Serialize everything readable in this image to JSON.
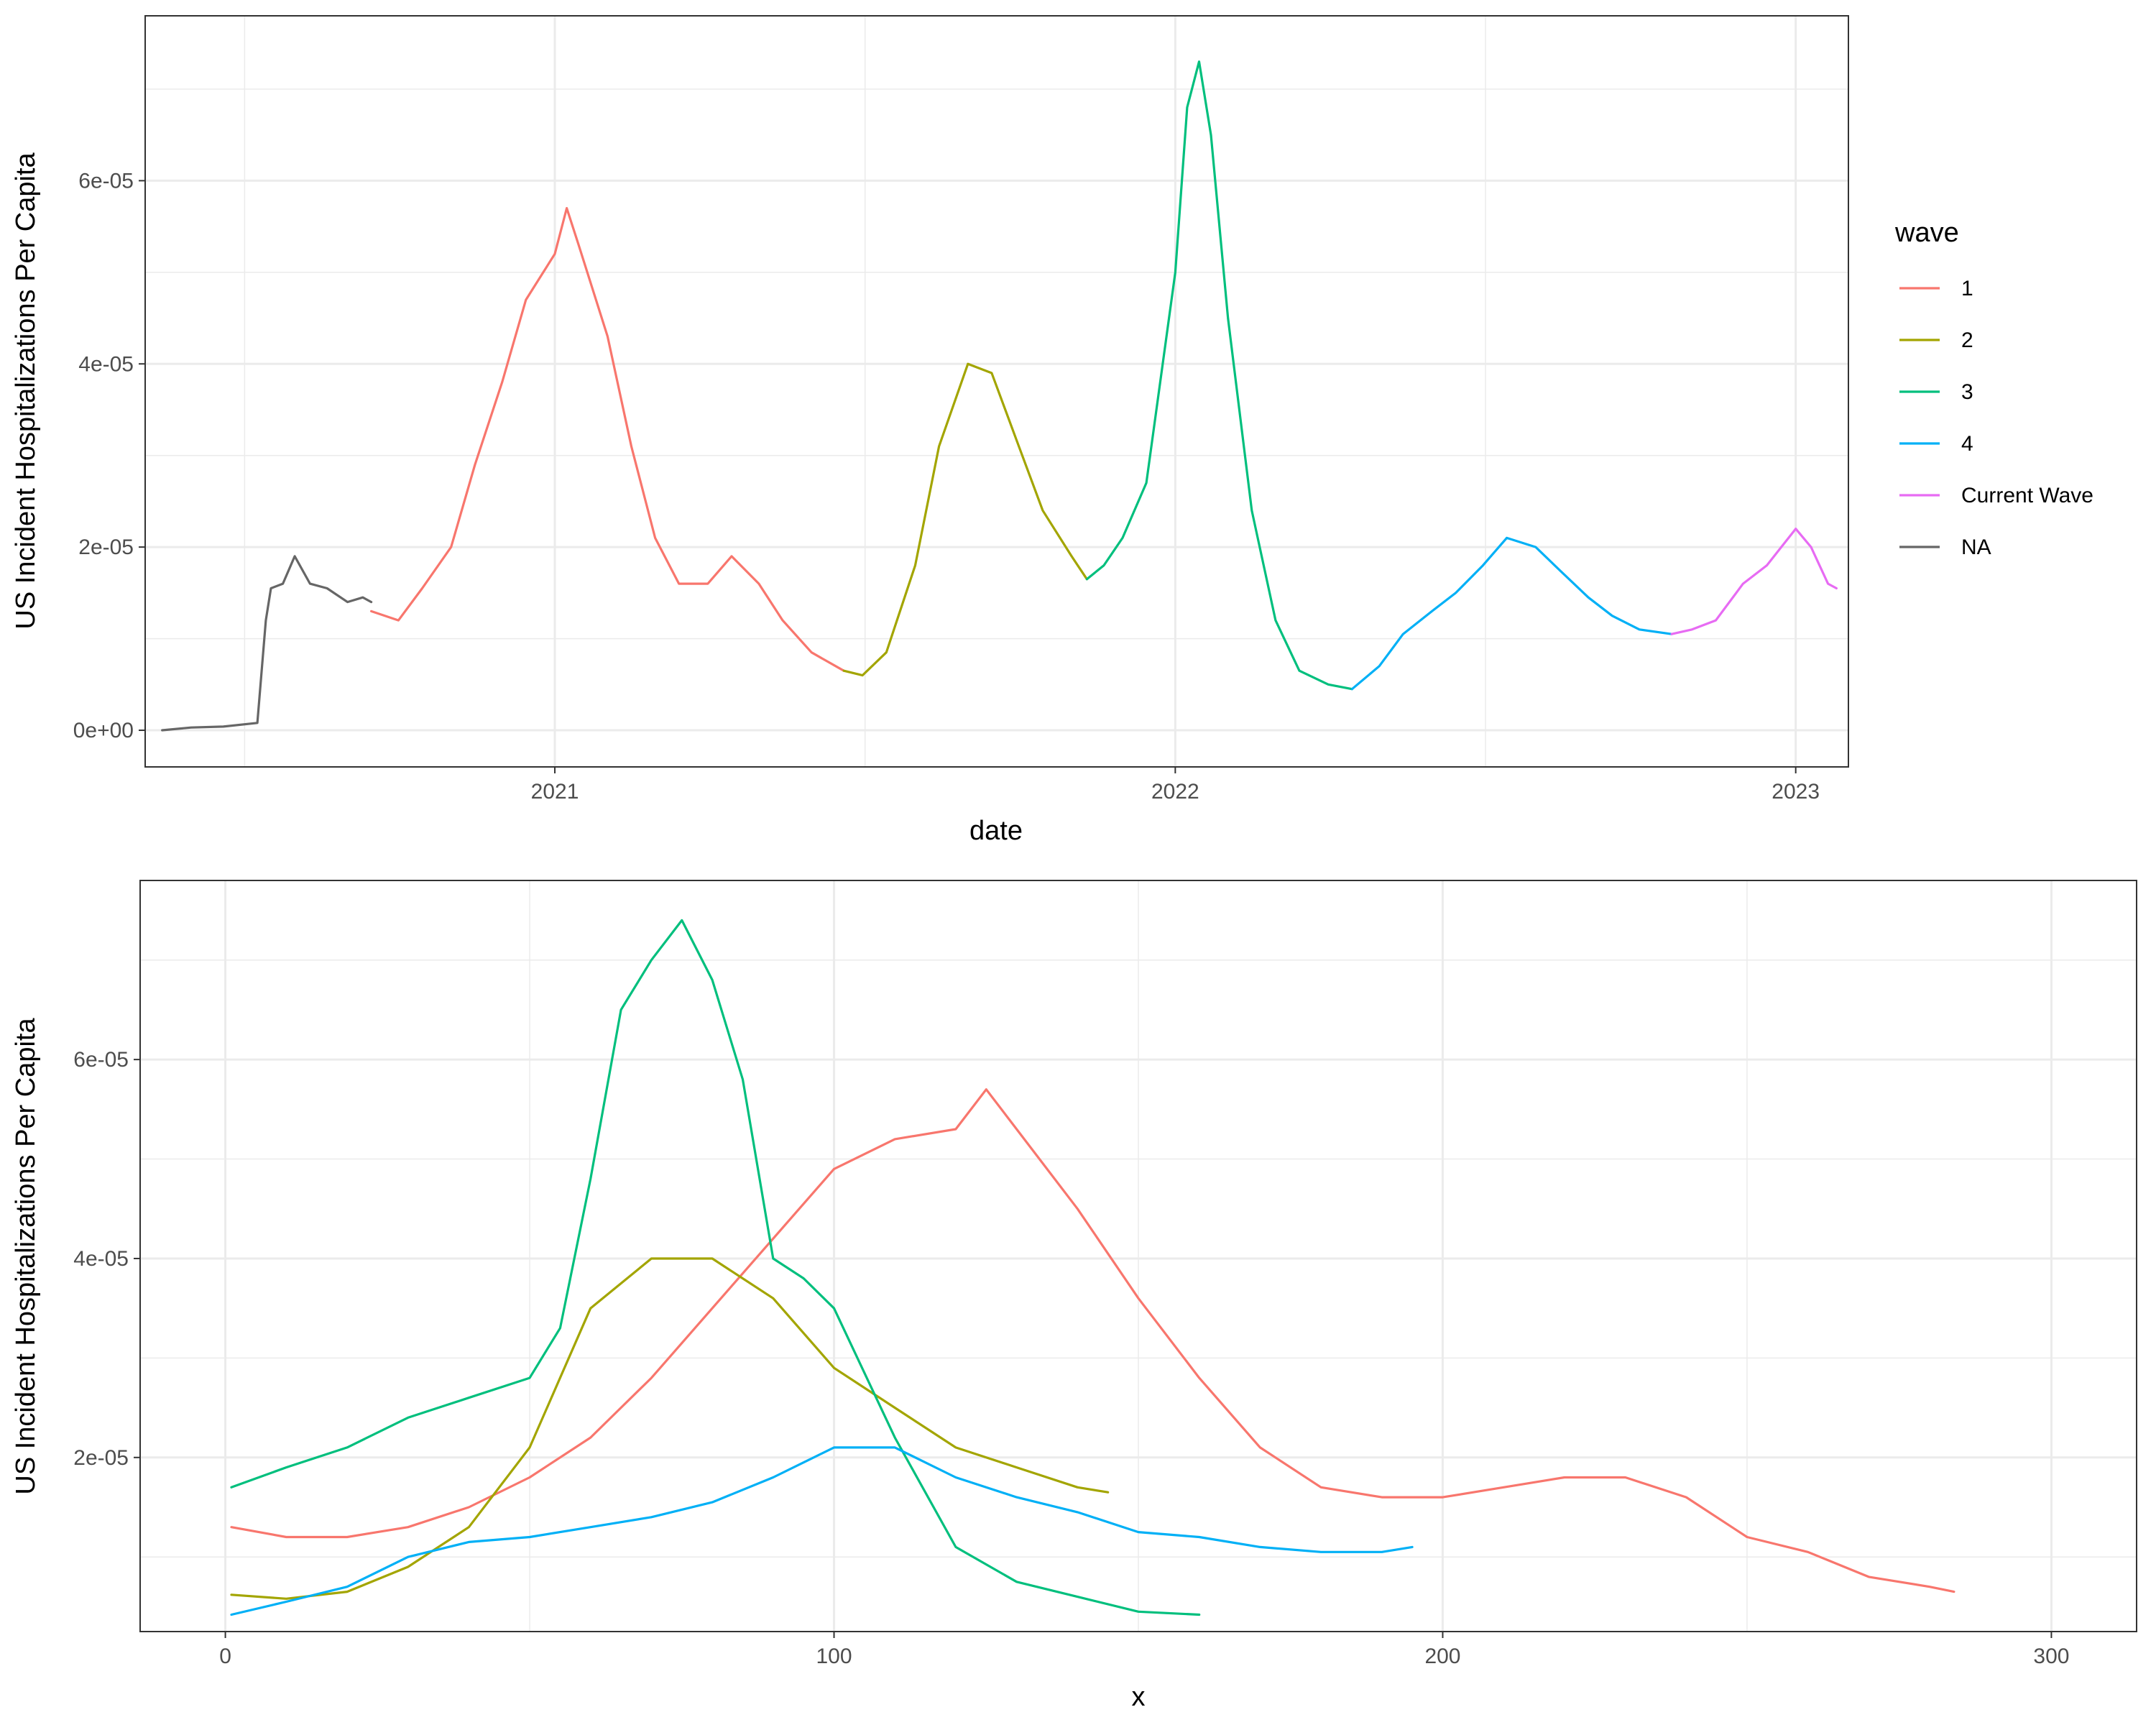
{
  "chart_data": [
    {
      "type": "line",
      "xlabel": "date",
      "ylabel": "US Incident Hospitalizations Per Capita",
      "x_tick_labels": [
        "2021",
        "2022",
        "2023"
      ],
      "y_tick_labels": [
        "0e+00",
        "2e-05",
        "4e-05",
        "6e-05"
      ],
      "y_ticks": [
        0,
        2e-05,
        4e-05,
        6e-05
      ],
      "x_ticks": [
        "2021-01-01",
        "2022-01-01",
        "2023-01-01"
      ],
      "xlim": [
        "2020-05-05",
        "2023-02-01"
      ],
      "ylim": [
        -4e-06,
        7.8e-05
      ],
      "grid": true,
      "legend": {
        "title": "wave",
        "position": "right",
        "entries": [
          {
            "label": "1",
            "color": "#F8766D"
          },
          {
            "label": "2",
            "color": "#A3A500"
          },
          {
            "label": "3",
            "color": "#00BF7D"
          },
          {
            "label": "4",
            "color": "#00B0F6"
          },
          {
            "label": "Current Wave",
            "color": "#E76BF3"
          },
          {
            "label": "NA",
            "color": "#666666"
          }
        ]
      },
      "series": [
        {
          "name": "NA",
          "color": "#666666",
          "x": [
            "2020-05-15",
            "2020-06-01",
            "2020-06-20",
            "2020-07-10",
            "2020-07-15",
            "2020-07-18",
            "2020-07-25",
            "2020-08-01",
            "2020-08-10",
            "2020-08-20",
            "2020-09-01",
            "2020-09-10",
            "2020-09-15"
          ],
          "y": [
            0.0,
            3e-07,
            4e-07,
            8e-07,
            1.2e-05,
            1.55e-05,
            1.6e-05,
            1.9e-05,
            1.6e-05,
            1.55e-05,
            1.4e-05,
            1.45e-05,
            1.4e-05
          ]
        },
        {
          "name": "1",
          "color": "#F8766D",
          "x": [
            "2020-09-15",
            "2020-10-01",
            "2020-10-15",
            "2020-11-01",
            "2020-11-15",
            "2020-12-01",
            "2020-12-15",
            "2021-01-01",
            "2021-01-08",
            "2021-01-15",
            "2021-02-01",
            "2021-02-15",
            "2021-03-01",
            "2021-03-15",
            "2021-04-01",
            "2021-04-15",
            "2021-05-01",
            "2021-05-15",
            "2021-06-01",
            "2021-06-20"
          ],
          "y": [
            1.3e-05,
            1.2e-05,
            1.55e-05,
            2e-05,
            2.9e-05,
            3.8e-05,
            4.7e-05,
            5.2e-05,
            5.7e-05,
            5.3e-05,
            4.3e-05,
            3.1e-05,
            2.1e-05,
            1.6e-05,
            1.6e-05,
            1.9e-05,
            1.6e-05,
            1.2e-05,
            8.5e-06,
            6.5e-06
          ]
        },
        {
          "name": "2",
          "color": "#A3A500",
          "x": [
            "2021-06-20",
            "2021-07-01",
            "2021-07-15",
            "2021-08-01",
            "2021-08-15",
            "2021-09-01",
            "2021-09-15",
            "2021-10-01",
            "2021-10-15",
            "2021-11-01",
            "2021-11-10"
          ],
          "y": [
            6.5e-06,
            6e-06,
            8.5e-06,
            1.8e-05,
            3.1e-05,
            4e-05,
            3.9e-05,
            3.1e-05,
            2.4e-05,
            1.9e-05,
            1.65e-05
          ]
        },
        {
          "name": "3",
          "color": "#00BF7D",
          "x": [
            "2021-11-10",
            "2021-11-20",
            "2021-12-01",
            "2021-12-15",
            "2022-01-01",
            "2022-01-08",
            "2022-01-15",
            "2022-01-22",
            "2022-02-01",
            "2022-02-15",
            "2022-03-01",
            "2022-03-15",
            "2022-04-01",
            "2022-04-15"
          ],
          "y": [
            1.65e-05,
            1.8e-05,
            2.1e-05,
            2.7e-05,
            5e-05,
            6.8e-05,
            7.3e-05,
            6.5e-05,
            4.5e-05,
            2.4e-05,
            1.2e-05,
            6.5e-06,
            5e-06,
            4.5e-06
          ]
        },
        {
          "name": "4",
          "color": "#00B0F6",
          "x": [
            "2022-04-15",
            "2022-05-01",
            "2022-05-15",
            "2022-06-01",
            "2022-06-15",
            "2022-07-01",
            "2022-07-15",
            "2022-08-01",
            "2022-08-15",
            "2022-09-01",
            "2022-09-15",
            "2022-10-01",
            "2022-10-20"
          ],
          "y": [
            4.5e-06,
            7e-06,
            1.05e-05,
            1.3e-05,
            1.5e-05,
            1.8e-05,
            2.1e-05,
            2e-05,
            1.75e-05,
            1.45e-05,
            1.25e-05,
            1.1e-05,
            1.05e-05
          ]
        },
        {
          "name": "Current Wave",
          "color": "#E76BF3",
          "x": [
            "2022-10-20",
            "2022-11-01",
            "2022-11-15",
            "2022-12-01",
            "2022-12-15",
            "2023-01-01",
            "2023-01-10",
            "2023-01-20",
            "2023-01-25"
          ],
          "y": [
            1.05e-05,
            1.1e-05,
            1.2e-05,
            1.6e-05,
            1.8e-05,
            2.2e-05,
            2e-05,
            1.6e-05,
            1.55e-05
          ]
        }
      ]
    },
    {
      "type": "line",
      "xlabel": "x",
      "ylabel": "US Incident Hospitalizations Per Capita",
      "x_ticks": [
        0,
        100,
        200,
        300
      ],
      "x_tick_labels": [
        "0",
        "100",
        "200",
        "300"
      ],
      "y_tick_labels": [
        "2e-05",
        "4e-05",
        "6e-05"
      ],
      "y_ticks": [
        2e-05,
        4e-05,
        6e-05
      ],
      "xlim": [
        -14,
        314
      ],
      "ylim": [
        2.5e-06,
        7.8e-05
      ],
      "grid": true,
      "series": [
        {
          "color": "#F8766D",
          "x": [
            1,
            10,
            20,
            30,
            40,
            50,
            60,
            70,
            80,
            90,
            100,
            110,
            120,
            125,
            130,
            140,
            150,
            160,
            170,
            180,
            190,
            200,
            210,
            220,
            230,
            240,
            250,
            260,
            270,
            280,
            284
          ],
          "y": [
            1.3e-05,
            1.2e-05,
            1.2e-05,
            1.3e-05,
            1.5e-05,
            1.8e-05,
            2.2e-05,
            2.8e-05,
            3.5e-05,
            4.2e-05,
            4.9e-05,
            5.2e-05,
            5.3e-05,
            5.7e-05,
            5.3e-05,
            4.5e-05,
            3.6e-05,
            2.8e-05,
            2.1e-05,
            1.7e-05,
            1.6e-05,
            1.6e-05,
            1.7e-05,
            1.8e-05,
            1.8e-05,
            1.6e-05,
            1.2e-05,
            1.05e-05,
            8e-06,
            7e-06,
            6.5e-06
          ]
        },
        {
          "color": "#A3A500",
          "x": [
            1,
            10,
            20,
            30,
            40,
            50,
            60,
            70,
            80,
            90,
            100,
            110,
            120,
            130,
            140,
            145
          ],
          "y": [
            6.2e-06,
            5.8e-06,
            6.5e-06,
            9e-06,
            1.3e-05,
            2.1e-05,
            3.5e-05,
            4e-05,
            4e-05,
            3.6e-05,
            2.9e-05,
            2.5e-05,
            2.1e-05,
            1.9e-05,
            1.7e-05,
            1.65e-05
          ]
        },
        {
          "color": "#00BF7D",
          "x": [
            1,
            10,
            20,
            30,
            40,
            50,
            55,
            60,
            65,
            70,
            75,
            80,
            85,
            90,
            95,
            100,
            110,
            120,
            130,
            140,
            150,
            160
          ],
          "y": [
            1.7e-05,
            1.9e-05,
            2.1e-05,
            2.4e-05,
            2.6e-05,
            2.8e-05,
            3.3e-05,
            4.8e-05,
            6.5e-05,
            7e-05,
            7.4e-05,
            6.8e-05,
            5.8e-05,
            4e-05,
            3.8e-05,
            3.5e-05,
            2.2e-05,
            1.1e-05,
            7.5e-06,
            6e-06,
            4.5e-06,
            4.2e-06
          ]
        },
        {
          "color": "#00B0F6",
          "x": [
            1,
            10,
            20,
            30,
            40,
            50,
            60,
            70,
            80,
            90,
            100,
            110,
            120,
            130,
            140,
            150,
            160,
            170,
            180,
            190,
            195
          ],
          "y": [
            4.2e-06,
            5.5e-06,
            7e-06,
            1e-05,
            1.15e-05,
            1.2e-05,
            1.3e-05,
            1.4e-05,
            1.55e-05,
            1.8e-05,
            2.1e-05,
            2.1e-05,
            1.8e-05,
            1.6e-05,
            1.45e-05,
            1.25e-05,
            1.2e-05,
            1.1e-05,
            1.05e-05,
            1.05e-05,
            1.1e-05
          ]
        }
      ]
    }
  ]
}
